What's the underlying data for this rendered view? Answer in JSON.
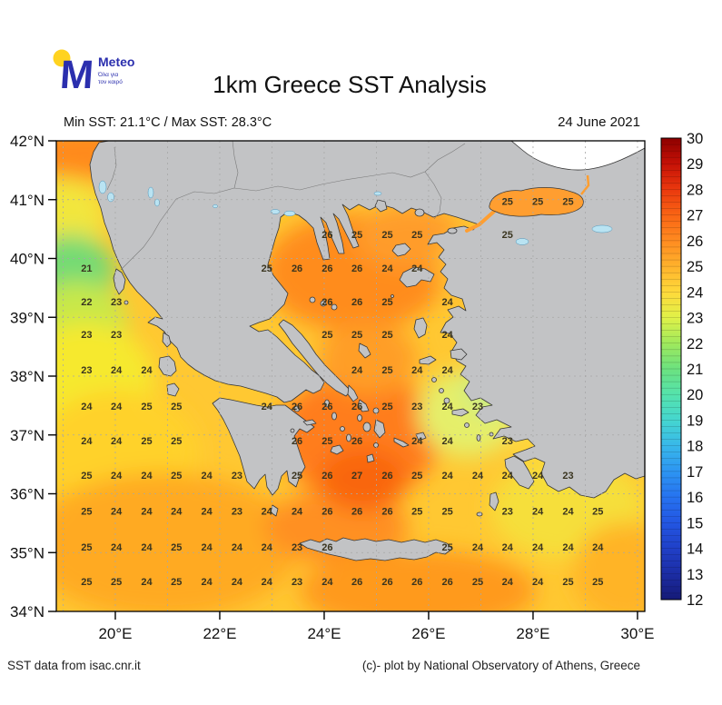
{
  "header": {
    "logo": {
      "brand": "Meteo",
      "m_glyph": "M",
      "tagline_line1": "Όλα για",
      "tagline_line2": "τον καιρό"
    },
    "title": "1km Greece SST Analysis",
    "subtitle": "Min SST: 21.1°C / Max SST: 28.3°C",
    "date": "24 June 2021"
  },
  "footer": {
    "source_left": "SST data from isac.cnr.it",
    "credit_right": "(c)- plot by National Observatory of Athens, Greece"
  },
  "colors": {
    "land": "#c2c3c5",
    "coast": "#383838",
    "sea_base": "#ffc832",
    "lake": "#b9e3f2",
    "black_sea": "#ffffff",
    "marmara": "#ff9e30",
    "gridline": "#a8a8a8",
    "logo_blue": "#2b2fae",
    "logo_yellow": "#ffd320"
  },
  "chart_data": {
    "type": "heatmap",
    "title": "1km Greece SST Analysis",
    "min_sst_c": 21.1,
    "max_sst_c": 28.3,
    "date": "24 June 2021",
    "units": "°C",
    "x_axis": {
      "range_lon": [
        18.87,
        30.14
      ],
      "gridlines_every_deg": 1,
      "ticks": [
        {
          "value": 20,
          "label": "20°E"
        },
        {
          "value": 22,
          "label": "22°E"
        },
        {
          "value": 24,
          "label": "24°E"
        },
        {
          "value": 26,
          "label": "26°E"
        },
        {
          "value": 28,
          "label": "28°E"
        },
        {
          "value": 30,
          "label": "30°E"
        }
      ]
    },
    "y_axis": {
      "range_lat": [
        34,
        42
      ],
      "gridlines_every_deg": 1,
      "ticks": [
        {
          "value": 42,
          "label": "42°N"
        },
        {
          "value": 41,
          "label": "41°N"
        },
        {
          "value": 40,
          "label": "40°N"
        },
        {
          "value": 39,
          "label": "39°N"
        },
        {
          "value": 38,
          "label": "38°N"
        },
        {
          "value": 37,
          "label": "37°N"
        },
        {
          "value": 36,
          "label": "36°N"
        },
        {
          "value": 35,
          "label": "35°N"
        },
        {
          "value": 34,
          "label": "34°N"
        }
      ]
    },
    "colorbar": {
      "min": 12,
      "max": 30,
      "segment_step": 0.25,
      "tick_values": [
        12,
        13,
        14,
        15,
        16,
        17,
        18,
        19,
        20,
        21,
        22,
        23,
        24,
        25,
        26,
        27,
        28,
        29,
        30
      ],
      "stops": [
        {
          "v": 12,
          "c": "#151a77"
        },
        {
          "v": 13,
          "c": "#1c2da4"
        },
        {
          "v": 14,
          "c": "#2040c8"
        },
        {
          "v": 15,
          "c": "#2356e2"
        },
        {
          "v": 16,
          "c": "#2673f0"
        },
        {
          "v": 17,
          "c": "#2d95f2"
        },
        {
          "v": 18,
          "c": "#38b8ea"
        },
        {
          "v": 19,
          "c": "#45d6cf"
        },
        {
          "v": 20,
          "c": "#55e3ac"
        },
        {
          "v": 21,
          "c": "#6ce27f"
        },
        {
          "v": 22,
          "c": "#a0e95c"
        },
        {
          "v": 23,
          "c": "#e0f148"
        },
        {
          "v": 24,
          "c": "#ffd93a"
        },
        {
          "v": 25,
          "c": "#ffb22c"
        },
        {
          "v": 26,
          "c": "#ff8b20"
        },
        {
          "v": 27,
          "c": "#f96414"
        },
        {
          "v": 28,
          "c": "#ea380e"
        },
        {
          "v": 29,
          "c": "#c51106"
        },
        {
          "v": 30,
          "c": "#8e0000"
        }
      ]
    },
    "sst_grid": {
      "lons": [
        19.45,
        20.02,
        20.6,
        21.17,
        21.75,
        22.33,
        22.9,
        23.48,
        24.06,
        24.63,
        25.21,
        25.78,
        26.36,
        26.94,
        27.51,
        28.09,
        28.67,
        29.24
      ],
      "lats": [
        40.97,
        40.41,
        39.84,
        39.27,
        38.71,
        38.11,
        37.49,
        36.9,
        36.32,
        35.71,
        35.1,
        34.51
      ],
      "values": [
        [
          null,
          null,
          null,
          null,
          null,
          null,
          null,
          null,
          null,
          null,
          null,
          null,
          null,
          null,
          25,
          25,
          25,
          null
        ],
        [
          null,
          null,
          null,
          null,
          null,
          null,
          null,
          null,
          26,
          25,
          25,
          25,
          null,
          null,
          25,
          null,
          null,
          null
        ],
        [
          21,
          null,
          null,
          null,
          null,
          null,
          25,
          26,
          26,
          26,
          24,
          24,
          null,
          null,
          null,
          null,
          null,
          null
        ],
        [
          22,
          23,
          null,
          null,
          null,
          null,
          null,
          null,
          26,
          26,
          25,
          null,
          24,
          null,
          null,
          null,
          null,
          null
        ],
        [
          23,
          23,
          null,
          null,
          null,
          null,
          null,
          null,
          25,
          25,
          25,
          null,
          24,
          null,
          null,
          null,
          null,
          null
        ],
        [
          23,
          24,
          24,
          null,
          null,
          null,
          null,
          null,
          null,
          24,
          25,
          24,
          24,
          null,
          null,
          null,
          null,
          null
        ],
        [
          24,
          24,
          25,
          25,
          null,
          null,
          24,
          26,
          26,
          26,
          25,
          23,
          24,
          23,
          null,
          null,
          null,
          null
        ],
        [
          24,
          24,
          25,
          25,
          null,
          null,
          null,
          26,
          25,
          26,
          null,
          24,
          24,
          null,
          23,
          null,
          null,
          null
        ],
        [
          25,
          24,
          24,
          25,
          24,
          23,
          null,
          25,
          26,
          27,
          26,
          25,
          24,
          24,
          24,
          24,
          23,
          null
        ],
        [
          25,
          24,
          24,
          24,
          24,
          23,
          24,
          24,
          26,
          26,
          26,
          25,
          25,
          null,
          23,
          24,
          24,
          25
        ],
        [
          25,
          24,
          24,
          25,
          24,
          24,
          24,
          23,
          26,
          null,
          null,
          null,
          25,
          24,
          24,
          24,
          24,
          24
        ],
        [
          25,
          25,
          24,
          25,
          24,
          24,
          24,
          23,
          24,
          26,
          26,
          26,
          26,
          25,
          24,
          24,
          25,
          25
        ]
      ]
    }
  }
}
